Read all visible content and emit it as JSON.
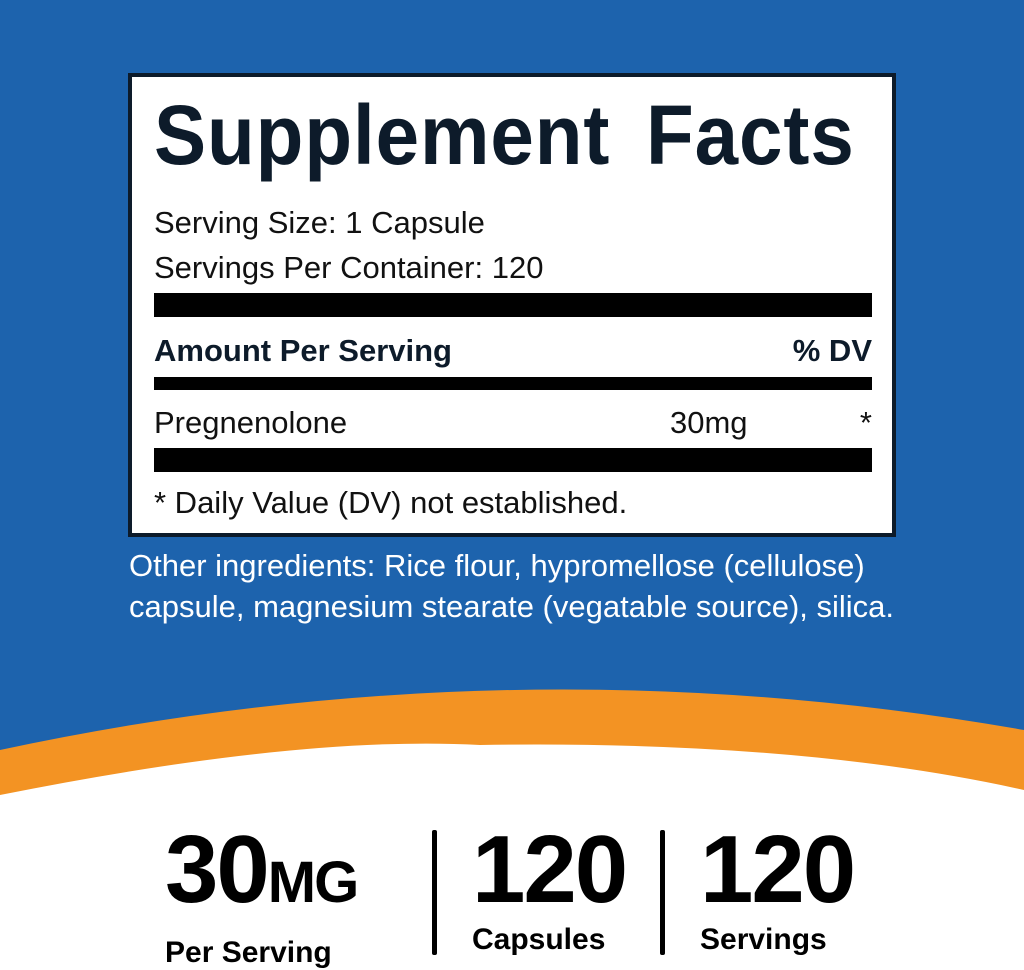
{
  "colors": {
    "background_blue": "#1d63ad",
    "band_orange": "#f39323",
    "label_navy": "#0d1b2a"
  },
  "facts": {
    "title": "Supplement Facts",
    "serving_size": "Serving Size: 1 Capsule",
    "servings_per_container": "Servings Per Container: 120",
    "amount_header": "Amount Per Serving",
    "dv_header": "% DV",
    "ingredients": [
      {
        "name": "Pregnenolone",
        "amount": "30mg",
        "dv": "*"
      }
    ],
    "footnote": "* Daily Value (DV) not established."
  },
  "other_ingredients": "Other ingredients: Rice flour, hypromellose (cellulose) capsule, magnesium stearate (vegatable source), silica.",
  "stats": [
    {
      "value": "30",
      "unit": "MG",
      "label": "Per Serving"
    },
    {
      "value": "120",
      "unit": "",
      "label": "Capsules"
    },
    {
      "value": "120",
      "unit": "",
      "label": "Servings"
    }
  ]
}
